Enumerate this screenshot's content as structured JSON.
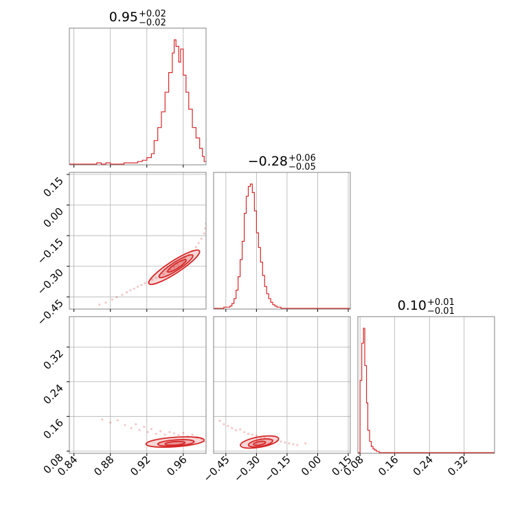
{
  "chart_data": {
    "type": "corner",
    "color": "#d62728",
    "grid": true,
    "titles": [
      {
        "value": "0.95",
        "plus": "+0.02",
        "minus": "−0.02"
      },
      {
        "value": "−0.28",
        "plus": "+0.06",
        "minus": "−0.05"
      },
      {
        "value": "0.10",
        "plus": "+0.01",
        "minus": "−0.01"
      }
    ],
    "params": [
      {
        "range": [
          0.835,
          0.985
        ],
        "ticks": [
          0.84,
          0.88,
          0.92,
          0.96
        ],
        "tick_labels": [
          "0.84",
          "0.88",
          "0.92",
          "0.96"
        ]
      },
      {
        "range": [
          -0.51,
          0.16
        ],
        "ticks": [
          -0.45,
          -0.3,
          -0.15,
          0.0,
          0.15
        ],
        "tick_labels": [
          "−0.45",
          "−0.30",
          "−0.15",
          "0.00",
          "0.15"
        ]
      },
      {
        "range": [
          0.075,
          0.39
        ],
        "ticks": [
          0.08,
          0.16,
          0.24,
          0.32
        ],
        "tick_labels": [
          "0.08",
          "0.16",
          "0.24",
          "0.32"
        ]
      }
    ],
    "histograms": [
      {
        "param": 0,
        "bins": [
          [
            0.835,
            0
          ],
          [
            0.84,
            0
          ],
          [
            0.845,
            0
          ],
          [
            0.85,
            0
          ],
          [
            0.855,
            0
          ],
          [
            0.86,
            0
          ],
          [
            0.865,
            1
          ],
          [
            0.87,
            0
          ],
          [
            0.875,
            1
          ],
          [
            0.88,
            0
          ],
          [
            0.885,
            0
          ],
          [
            0.89,
            0
          ],
          [
            0.895,
            1
          ],
          [
            0.9,
            1
          ],
          [
            0.905,
            1
          ],
          [
            0.91,
            2
          ],
          [
            0.915,
            3
          ],
          [
            0.92,
            5
          ],
          [
            0.925,
            8
          ],
          [
            0.928,
            18
          ],
          [
            0.932,
            28
          ],
          [
            0.936,
            40
          ],
          [
            0.94,
            55
          ],
          [
            0.944,
            70
          ],
          [
            0.948,
            85
          ],
          [
            0.95,
            95
          ],
          [
            0.952,
            90
          ],
          [
            0.955,
            78
          ],
          [
            0.957,
            88
          ],
          [
            0.96,
            68
          ],
          [
            0.963,
            55
          ],
          [
            0.966,
            42
          ],
          [
            0.97,
            28
          ],
          [
            0.974,
            20
          ],
          [
            0.978,
            12
          ],
          [
            0.981,
            6
          ],
          [
            0.983,
            2
          ]
        ]
      },
      {
        "param": 1,
        "bins": [
          [
            -0.51,
            0
          ],
          [
            -0.48,
            0
          ],
          [
            -0.46,
            1
          ],
          [
            -0.44,
            1
          ],
          [
            -0.43,
            2
          ],
          [
            -0.42,
            4
          ],
          [
            -0.41,
            8
          ],
          [
            -0.4,
            15
          ],
          [
            -0.39,
            26
          ],
          [
            -0.38,
            40
          ],
          [
            -0.37,
            55
          ],
          [
            -0.36,
            78
          ],
          [
            -0.35,
            92
          ],
          [
            -0.34,
            100
          ],
          [
            -0.33,
            102
          ],
          [
            -0.32,
            95
          ],
          [
            -0.31,
            80
          ],
          [
            -0.3,
            62
          ],
          [
            -0.29,
            50
          ],
          [
            -0.28,
            38
          ],
          [
            -0.27,
            27
          ],
          [
            -0.26,
            18
          ],
          [
            -0.25,
            12
          ],
          [
            -0.24,
            8
          ],
          [
            -0.23,
            5
          ],
          [
            -0.22,
            3
          ],
          [
            -0.21,
            2
          ],
          [
            -0.2,
            1
          ],
          [
            -0.19,
            1
          ],
          [
            -0.18,
            0
          ],
          [
            -0.15,
            0
          ],
          [
            0.0,
            0
          ]
        ]
      },
      {
        "param": 2,
        "bins": [
          [
            0.075,
            0
          ],
          [
            0.08,
            58
          ],
          [
            0.084,
            88
          ],
          [
            0.088,
            100
          ],
          [
            0.091,
            70
          ],
          [
            0.095,
            40
          ],
          [
            0.098,
            18
          ],
          [
            0.102,
            9
          ],
          [
            0.106,
            5
          ],
          [
            0.11,
            3
          ],
          [
            0.114,
            2
          ],
          [
            0.118,
            1
          ],
          [
            0.124,
            0
          ],
          [
            0.13,
            0
          ]
        ]
      }
    ],
    "scatter": [
      {
        "x_param": 0,
        "y_param": 1,
        "points": [
          [
            0.868,
            -0.488
          ],
          [
            0.875,
            -0.478
          ],
          [
            0.882,
            -0.463
          ],
          [
            0.887,
            -0.452
          ],
          [
            0.893,
            -0.44
          ],
          [
            0.898,
            -0.428
          ],
          [
            0.902,
            -0.418
          ],
          [
            0.906,
            -0.41
          ],
          [
            0.91,
            -0.4
          ],
          [
            0.914,
            -0.392
          ],
          [
            0.918,
            -0.384
          ],
          [
            0.922,
            -0.376
          ],
          [
            0.926,
            -0.366
          ],
          [
            0.93,
            -0.357
          ],
          [
            0.934,
            -0.346
          ],
          [
            0.938,
            -0.337
          ],
          [
            0.942,
            -0.326
          ],
          [
            0.946,
            -0.316
          ],
          [
            0.95,
            -0.304
          ],
          [
            0.954,
            -0.29
          ],
          [
            0.958,
            -0.275
          ],
          [
            0.962,
            -0.26
          ],
          [
            0.966,
            -0.244
          ],
          [
            0.97,
            -0.226
          ],
          [
            0.974,
            -0.206
          ],
          [
            0.977,
            -0.186
          ],
          [
            0.98,
            -0.165
          ],
          [
            0.983,
            -0.14
          ],
          [
            0.984,
            -0.115
          ],
          [
            0.985,
            -0.09
          ]
        ]
      },
      {
        "x_param": 0,
        "y_param": 2,
        "points": [
          [
            0.871,
            0.153
          ],
          [
            0.88,
            0.146
          ],
          [
            0.888,
            0.151
          ],
          [
            0.896,
            0.14
          ],
          [
            0.903,
            0.133
          ],
          [
            0.908,
            0.142
          ],
          [
            0.912,
            0.129
          ],
          [
            0.917,
            0.136
          ],
          [
            0.921,
            0.124
          ],
          [
            0.925,
            0.131
          ],
          [
            0.93,
            0.12
          ],
          [
            0.935,
            0.126
          ],
          [
            0.94,
            0.118
          ],
          [
            0.945,
            0.124
          ],
          [
            0.95,
            0.121
          ],
          [
            0.955,
            0.117
          ],
          [
            0.96,
            0.122
          ],
          [
            0.965,
            0.114
          ],
          [
            0.97,
            0.118
          ],
          [
            0.975,
            0.112
          ],
          [
            0.98,
            0.108
          ],
          [
            0.983,
            0.102
          ]
        ]
      },
      {
        "x_param": 1,
        "y_param": 2,
        "points": [
          [
            -0.48,
            0.15
          ],
          [
            -0.46,
            0.142
          ],
          [
            -0.44,
            0.138
          ],
          [
            -0.42,
            0.133
          ],
          [
            -0.4,
            0.128
          ],
          [
            -0.38,
            0.13
          ],
          [
            -0.36,
            0.124
          ],
          [
            -0.34,
            0.12
          ],
          [
            -0.32,
            0.118
          ],
          [
            -0.3,
            0.116
          ],
          [
            -0.28,
            0.112
          ],
          [
            -0.26,
            0.11
          ],
          [
            -0.24,
            0.108
          ],
          [
            -0.22,
            0.106
          ],
          [
            -0.2,
            0.104
          ],
          [
            -0.18,
            0.102
          ],
          [
            -0.16,
            0.1
          ],
          [
            -0.14,
            0.098
          ],
          [
            -0.12,
            0.096
          ],
          [
            -0.1,
            0.094
          ],
          [
            -0.06,
            0.098
          ]
        ]
      }
    ],
    "contours": [
      {
        "x_param": 0,
        "y_param": 1,
        "levels": [
          {
            "cx": 0.95,
            "cy": -0.305,
            "rx": 0.033,
            "ry": 0.03,
            "rot": -33
          },
          {
            "cx": 0.952,
            "cy": -0.3,
            "rx": 0.022,
            "ry": 0.02,
            "rot": -33
          },
          {
            "cx": 0.953,
            "cy": -0.298,
            "rx": 0.012,
            "ry": 0.012,
            "rot": -33
          }
        ]
      },
      {
        "x_param": 0,
        "y_param": 2,
        "levels": [
          {
            "cx": 0.951,
            "cy": 0.101,
            "rx": 0.032,
            "ry": 0.011,
            "rot": -4
          },
          {
            "cx": 0.952,
            "cy": 0.099,
            "rx": 0.02,
            "ry": 0.007,
            "rot": -4
          },
          {
            "cx": 0.951,
            "cy": 0.098,
            "rx": 0.011,
            "ry": 0.004,
            "rot": -4
          }
        ]
      },
      {
        "x_param": 1,
        "y_param": 2,
        "levels": [
          {
            "cx": -0.285,
            "cy": 0.101,
            "rx": 0.095,
            "ry": 0.012,
            "rot": -10
          },
          {
            "cx": -0.28,
            "cy": 0.099,
            "rx": 0.06,
            "ry": 0.008,
            "rot": -10
          },
          {
            "cx": -0.285,
            "cy": 0.098,
            "rx": 0.03,
            "ry": 0.004,
            "rot": -10
          }
        ]
      }
    ]
  }
}
